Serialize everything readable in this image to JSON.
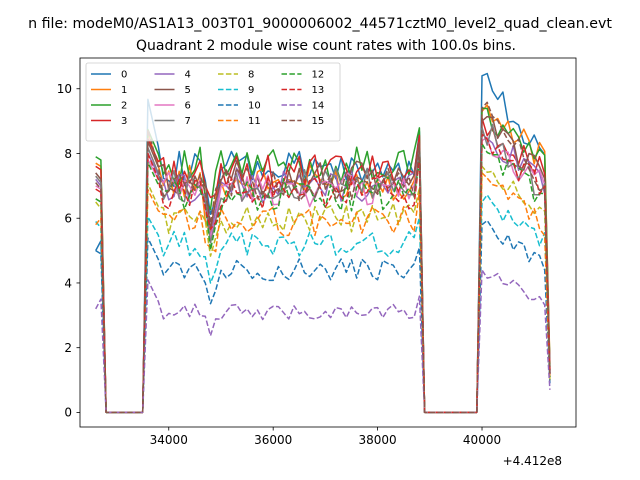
{
  "figure": {
    "suptitle": "n file: modeM0/AS1A13_003T01_9000006002_44571cztM0_level2_quad_clean.evt",
    "offset_label": "+4.412e8"
  },
  "chart_data": {
    "type": "line",
    "title": "Quadrant 2 module wise count rates with 100.0s bins.",
    "xlabel": "",
    "ylabel": "",
    "xlim": [
      32300,
      41800
    ],
    "ylim": [
      -0.45,
      10.95
    ],
    "x_ticks": [
      34000,
      36000,
      38000,
      40000
    ],
    "x_tick_labels": [
      "34000",
      "36000",
      "38000",
      "40000"
    ],
    "y_ticks": [
      0,
      2,
      4,
      6,
      8,
      10
    ],
    "y_tick_labels": [
      "0",
      "2",
      "4",
      "6",
      "8",
      "10"
    ],
    "legend": {
      "placement": "top-left",
      "ncol": 4
    },
    "segments": [
      {
        "x0": 32600,
        "x1": 32700
      },
      {
        "x0": 33600,
        "x1": 38800
      },
      {
        "x0": 40000,
        "x1": 41200
      }
    ],
    "gap_x": [
      32800,
      32900,
      33000,
      33100,
      33200,
      33300,
      33400,
      33500,
      38900,
      39000,
      39100,
      39200,
      39300,
      39400,
      39500,
      39600,
      39700,
      39800,
      39900
    ],
    "end_x": 41300,
    "series": [
      {
        "name": "0",
        "color": "#1f77b4",
        "dash": "solid",
        "start": [
          5.0,
          5.3
        ],
        "level": 7.5,
        "peak": 10.4,
        "tail": 8.0,
        "end": 1.2
      },
      {
        "name": "1",
        "color": "#ff7f0e",
        "dash": "solid",
        "start": [
          7.7,
          7.6
        ],
        "level": 7.1,
        "peak": 9.3,
        "tail": 7.8,
        "end": 1.5
      },
      {
        "name": "2",
        "color": "#2ca02c",
        "dash": "solid",
        "start": [
          7.9,
          7.8
        ],
        "level": 7.6,
        "peak": 9.4,
        "tail": 7.6,
        "end": 1.4
      },
      {
        "name": "3",
        "color": "#d62728",
        "dash": "solid",
        "start": [
          7.6,
          7.5
        ],
        "level": 7.4,
        "peak": 9.1,
        "tail": 7.3,
        "end": 1.3
      },
      {
        "name": "4",
        "color": "#9467bd",
        "dash": "solid",
        "start": [
          7.2,
          7.0
        ],
        "level": 7.0,
        "peak": 8.6,
        "tail": 7.0,
        "end": 1.2
      },
      {
        "name": "5",
        "color": "#8c564b",
        "dash": "solid",
        "start": [
          7.4,
          7.2
        ],
        "level": 7.2,
        "peak": 9.0,
        "tail": 7.2,
        "end": 1.3
      },
      {
        "name": "6",
        "color": "#e377c2",
        "dash": "solid",
        "start": [
          7.0,
          6.9
        ],
        "level": 6.9,
        "peak": 8.4,
        "tail": 7.0,
        "end": 1.2
      },
      {
        "name": "7",
        "color": "#7f7f7f",
        "dash": "solid",
        "start": [
          7.3,
          7.1
        ],
        "level": 7.0,
        "peak": 8.8,
        "tail": 6.8,
        "end": 1.1
      },
      {
        "name": "8",
        "color": "#bcbd22",
        "dash": "dashed",
        "start": [
          6.5,
          6.3
        ],
        "level": 6.0,
        "peak": 7.6,
        "tail": 6.0,
        "end": 1.0
      },
      {
        "name": "9",
        "color": "#17becf",
        "dash": "dashed",
        "start": [
          5.9,
          5.7
        ],
        "level": 5.2,
        "peak": 6.5,
        "tail": 5.3,
        "end": 1.0
      },
      {
        "name": "10",
        "color": "#1f77b4",
        "dash": "dashed",
        "start": [
          5.0,
          4.9
        ],
        "level": 4.4,
        "peak": 5.8,
        "tail": 4.6,
        "end": 0.9
      },
      {
        "name": "11",
        "color": "#ff7f0e",
        "dash": "dashed",
        "start": [
          5.8,
          6.0
        ],
        "level": 5.9,
        "peak": 7.4,
        "tail": 5.7,
        "end": 1.0
      },
      {
        "name": "12",
        "color": "#2ca02c",
        "dash": "dashed",
        "start": [
          6.6,
          6.5
        ],
        "level": 6.7,
        "peak": 8.3,
        "tail": 6.6,
        "end": 1.1
      },
      {
        "name": "13",
        "color": "#d62728",
        "dash": "dashed",
        "start": [
          6.9,
          6.8
        ],
        "level": 6.8,
        "peak": 8.6,
        "tail": 6.8,
        "end": 1.2
      },
      {
        "name": "14",
        "color": "#9467bd",
        "dash": "dashed",
        "start": [
          3.2,
          3.5
        ],
        "level": 3.1,
        "peak": 4.4,
        "tail": 3.4,
        "end": 0.7
      },
      {
        "name": "15",
        "color": "#8c564b",
        "dash": "dashed",
        "start": [
          7.1,
          6.9
        ],
        "level": 7.0,
        "peak": 9.4,
        "tail": 7.1,
        "end": 1.2
      }
    ]
  }
}
